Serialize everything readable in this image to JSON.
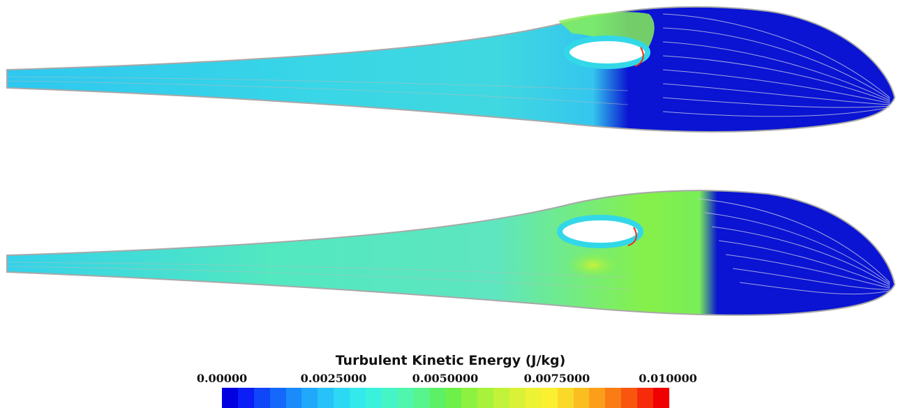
{
  "legend": {
    "title": "Turbulent Kinetic Energy (J/kg)",
    "ticks": [
      "0.00000",
      "0.0025000",
      "0.0050000",
      "0.0075000",
      "0.010000"
    ],
    "range": [
      0.0,
      0.01
    ],
    "colormap": [
      "#0000e0",
      "#0a1ef5",
      "#0f46f8",
      "#1469fa",
      "#1a8bfb",
      "#20a8fa",
      "#26c2f8",
      "#2cd8f3",
      "#33e9ea",
      "#3af2dc",
      "#45f5c6",
      "#4ff6ac",
      "#58f48c",
      "#5cf066",
      "#6ef04a",
      "#8df23f",
      "#a8f23c",
      "#c2f23a",
      "#daf138",
      "#eef235",
      "#fbef30",
      "#fbd928",
      "#fbbe20",
      "#fb9f1a",
      "#fa7c14",
      "#f8560f",
      "#f52b0a",
      "#f00000"
    ]
  },
  "colors": {
    "background": "#ffffff",
    "low_energy": "#0a14d2",
    "mid_energy": "#33d8e8",
    "high_energy": "#80f040",
    "peak_energy": "#f52b0a",
    "outline": "#a8a8a8"
  }
}
